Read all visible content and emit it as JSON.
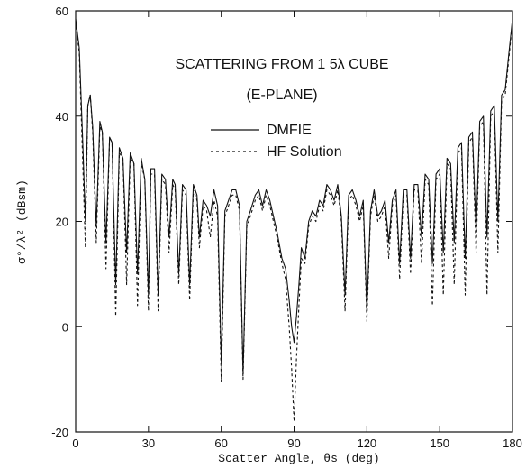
{
  "chart_data": {
    "type": "line",
    "title": "SCATTERING FROM 1 5λ CUBE",
    "subtitle": "(E-PLANE)",
    "xlabel": "Scatter Angle, θs (deg)",
    "ylabel": "σ°/λ²  (dBsm)",
    "xlim": [
      0,
      180
    ],
    "ylim": [
      -20,
      60
    ],
    "xticks": [
      0,
      30,
      60,
      90,
      120,
      150,
      180
    ],
    "yticks": [
      -20,
      0,
      20,
      40,
      60
    ],
    "grid": false,
    "legend_position": "upper-center",
    "series": [
      {
        "name": "DMFIE",
        "line_style": "solid",
        "points": [
          [
            0,
            58.5
          ],
          [
            1.5,
            53
          ],
          [
            3,
            34
          ],
          [
            4,
            20
          ],
          [
            5,
            42
          ],
          [
            6,
            44
          ],
          [
            7,
            38
          ],
          [
            8.5,
            19
          ],
          [
            10,
            39
          ],
          [
            11,
            37
          ],
          [
            12.5,
            16
          ],
          [
            14,
            36
          ],
          [
            15,
            35
          ],
          [
            16.5,
            8
          ],
          [
            18,
            34
          ],
          [
            19.5,
            32
          ],
          [
            21,
            14
          ],
          [
            22.5,
            33
          ],
          [
            24,
            31
          ],
          [
            25.5,
            10
          ],
          [
            27,
            32
          ],
          [
            28.5,
            28
          ],
          [
            30,
            6
          ],
          [
            31,
            30
          ],
          [
            32.5,
            30
          ],
          [
            34,
            6
          ],
          [
            35.5,
            29
          ],
          [
            37,
            28
          ],
          [
            38.5,
            17
          ],
          [
            40,
            28
          ],
          [
            41,
            27
          ],
          [
            42.5,
            10
          ],
          [
            44,
            27
          ],
          [
            45.5,
            26
          ],
          [
            47,
            8
          ],
          [
            48.5,
            27
          ],
          [
            50,
            25
          ],
          [
            51,
            17
          ],
          [
            52.5,
            24
          ],
          [
            54,
            23
          ],
          [
            55.5,
            21
          ],
          [
            57,
            26
          ],
          [
            58.5,
            23
          ],
          [
            60,
            -7
          ],
          [
            61.5,
            22
          ],
          [
            63,
            24
          ],
          [
            64.5,
            26
          ],
          [
            66,
            26
          ],
          [
            67.5,
            23
          ],
          [
            69,
            -9
          ],
          [
            70.5,
            20
          ],
          [
            72,
            22
          ],
          [
            74,
            25
          ],
          [
            75.5,
            26
          ],
          [
            77,
            23
          ],
          [
            78.5,
            26
          ],
          [
            80,
            24
          ],
          [
            81.5,
            21
          ],
          [
            83,
            18
          ],
          [
            85,
            13
          ],
          [
            86.5,
            11
          ],
          [
            88,
            5
          ],
          [
            89,
            0
          ],
          [
            90,
            -3
          ],
          [
            91,
            2
          ],
          [
            92,
            8
          ],
          [
            93,
            15
          ],
          [
            94.5,
            13
          ],
          [
            96,
            20
          ],
          [
            97.5,
            22
          ],
          [
            99,
            21
          ],
          [
            100.5,
            24
          ],
          [
            102,
            23
          ],
          [
            103.5,
            27
          ],
          [
            105,
            26
          ],
          [
            106.5,
            24
          ],
          [
            108,
            27
          ],
          [
            109.5,
            21
          ],
          [
            111,
            6
          ],
          [
            112.5,
            25
          ],
          [
            114,
            26
          ],
          [
            115.5,
            24
          ],
          [
            117,
            21
          ],
          [
            118.5,
            24
          ],
          [
            120,
            3
          ],
          [
            121.5,
            22
          ],
          [
            123,
            26
          ],
          [
            124.5,
            21
          ],
          [
            126,
            22
          ],
          [
            127.5,
            24
          ],
          [
            129,
            16
          ],
          [
            130.5,
            24
          ],
          [
            132,
            26
          ],
          [
            133.5,
            12
          ],
          [
            135,
            26
          ],
          [
            136.5,
            26
          ],
          [
            138,
            13
          ],
          [
            139.5,
            27
          ],
          [
            141,
            27
          ],
          [
            142.5,
            17
          ],
          [
            144,
            29
          ],
          [
            145.5,
            28
          ],
          [
            147,
            12
          ],
          [
            148.5,
            29
          ],
          [
            150,
            30
          ],
          [
            151.5,
            14
          ],
          [
            153,
            32
          ],
          [
            154.5,
            31
          ],
          [
            156,
            16
          ],
          [
            157.5,
            34
          ],
          [
            159,
            35
          ],
          [
            160.5,
            13
          ],
          [
            162,
            36
          ],
          [
            163.5,
            37
          ],
          [
            165,
            18
          ],
          [
            166.5,
            39
          ],
          [
            168,
            40
          ],
          [
            169.5,
            17
          ],
          [
            171,
            41
          ],
          [
            172.5,
            42
          ],
          [
            174,
            20
          ],
          [
            175.5,
            44
          ],
          [
            177,
            45
          ],
          [
            178.5,
            52
          ],
          [
            180,
            58.5
          ]
        ]
      },
      {
        "name": "HF Solution",
        "line_style": "dashed",
        "points": [
          [
            0,
            58
          ],
          [
            1.5,
            52
          ],
          [
            3,
            30
          ],
          [
            4,
            15
          ],
          [
            5,
            42
          ],
          [
            6,
            44
          ],
          [
            7,
            37
          ],
          [
            8.5,
            16
          ],
          [
            10,
            38
          ],
          [
            11,
            37
          ],
          [
            12.5,
            11
          ],
          [
            14,
            36
          ],
          [
            15,
            35
          ],
          [
            16.5,
            2
          ],
          [
            18,
            33
          ],
          [
            19.5,
            32
          ],
          [
            21,
            8
          ],
          [
            22.5,
            32
          ],
          [
            24,
            31
          ],
          [
            25.5,
            4
          ],
          [
            27,
            31
          ],
          [
            28.5,
            28
          ],
          [
            30,
            3
          ],
          [
            31,
            29
          ],
          [
            32.5,
            29
          ],
          [
            34,
            3
          ],
          [
            35.5,
            28
          ],
          [
            37,
            27
          ],
          [
            38.5,
            14
          ],
          [
            40,
            27
          ],
          [
            41,
            26
          ],
          [
            42.5,
            8
          ],
          [
            44,
            26
          ],
          [
            45.5,
            25
          ],
          [
            47,
            5
          ],
          [
            48.5,
            26
          ],
          [
            50,
            24
          ],
          [
            51,
            15
          ],
          [
            52.5,
            23
          ],
          [
            54,
            22
          ],
          [
            55.5,
            17
          ],
          [
            57,
            24
          ],
          [
            58.5,
            21
          ],
          [
            60,
            -10.5
          ],
          [
            61.5,
            21
          ],
          [
            63,
            23
          ],
          [
            64.5,
            25
          ],
          [
            66,
            25
          ],
          [
            67.5,
            22
          ],
          [
            69,
            -10
          ],
          [
            70.5,
            19
          ],
          [
            72,
            21
          ],
          [
            74,
            24
          ],
          [
            75.5,
            25
          ],
          [
            77,
            22
          ],
          [
            78.5,
            25
          ],
          [
            80,
            23
          ],
          [
            81.5,
            20
          ],
          [
            83,
            17
          ],
          [
            85,
            12
          ],
          [
            86.5,
            9
          ],
          [
            88,
            0
          ],
          [
            89,
            -8
          ],
          [
            90,
            -18
          ],
          [
            91,
            -6
          ],
          [
            92,
            4
          ],
          [
            93,
            13
          ],
          [
            94.5,
            12
          ],
          [
            96,
            19
          ],
          [
            97.5,
            21
          ],
          [
            99,
            20
          ],
          [
            100.5,
            23
          ],
          [
            102,
            22
          ],
          [
            103.5,
            26
          ],
          [
            105,
            25
          ],
          [
            106.5,
            23
          ],
          [
            108,
            26
          ],
          [
            109.5,
            20
          ],
          [
            111,
            3
          ],
          [
            112.5,
            24
          ],
          [
            114,
            25
          ],
          [
            115.5,
            23
          ],
          [
            117,
            20
          ],
          [
            118.5,
            23
          ],
          [
            120,
            1
          ],
          [
            121.5,
            21
          ],
          [
            123,
            25
          ],
          [
            124.5,
            20
          ],
          [
            126,
            21
          ],
          [
            127.5,
            23
          ],
          [
            129,
            13
          ],
          [
            130.5,
            23
          ],
          [
            132,
            25
          ],
          [
            133.5,
            9
          ],
          [
            135,
            25
          ],
          [
            136.5,
            25
          ],
          [
            138,
            10
          ],
          [
            139.5,
            26
          ],
          [
            141,
            26
          ],
          [
            142.5,
            12
          ],
          [
            144,
            28
          ],
          [
            145.5,
            27
          ],
          [
            147,
            4
          ],
          [
            148.5,
            28
          ],
          [
            150,
            29
          ],
          [
            151.5,
            6
          ],
          [
            153,
            31
          ],
          [
            154.5,
            30
          ],
          [
            156,
            8
          ],
          [
            157.5,
            33
          ],
          [
            159,
            34
          ],
          [
            160.5,
            6
          ],
          [
            162,
            35
          ],
          [
            163.5,
            36
          ],
          [
            165,
            14
          ],
          [
            166.5,
            38
          ],
          [
            168,
            39
          ],
          [
            169.5,
            6
          ],
          [
            171,
            40
          ],
          [
            172.5,
            41
          ],
          [
            174,
            14
          ],
          [
            175.5,
            43
          ],
          [
            177,
            44
          ],
          [
            178.5,
            51
          ],
          [
            180,
            58
          ]
        ]
      }
    ]
  }
}
